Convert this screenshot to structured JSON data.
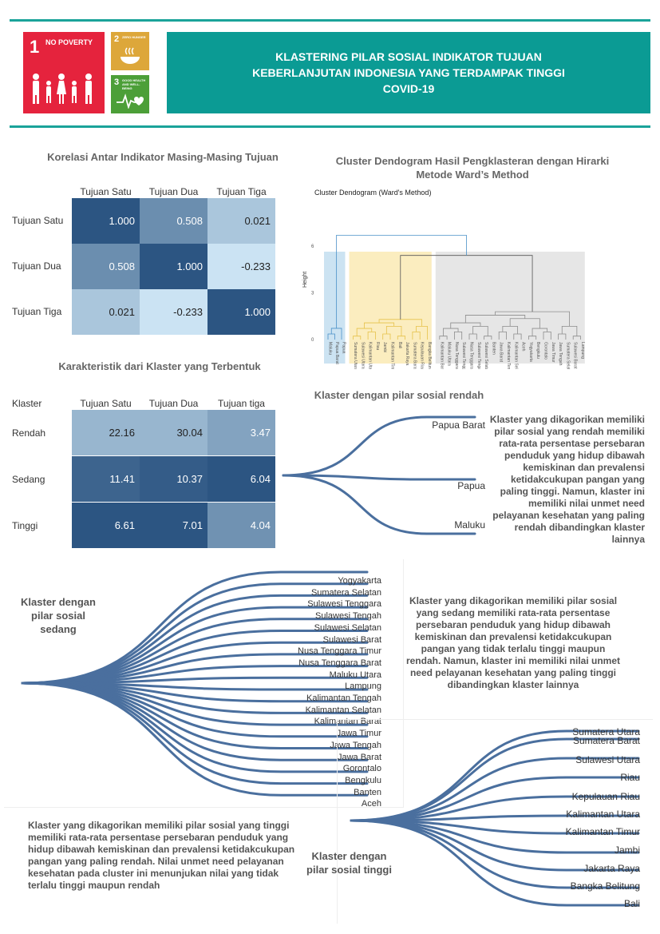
{
  "header": {
    "title_lines": [
      "KLASTERING PILAR SOSIAL INDIKATOR TUJUAN",
      "KEBERLANJUTAN INDONESIA YANG TERDAMPAK TINGGI",
      "COVID-19"
    ],
    "sdg1": {
      "num": "1",
      "text": "NO POVERTY",
      "color": "#e5233d"
    },
    "sdg2": {
      "num": "2",
      "text": "ZERO HUNGER",
      "color": "#dda73a"
    },
    "sdg3": {
      "num": "3",
      "text": "GOOD HEALTH AND WELL-BEING",
      "color": "#4c9f38"
    }
  },
  "corr_title": "Korelasi Antar Indikator Masing-Masing Tujuan",
  "dendro_title_lines": [
    "Cluster Dendogram Hasil Pengklasteran dengan Hirarki",
    "Metode Ward’s Method"
  ],
  "char_title": "Karakteristik dari Klaster yang Terbentuk",
  "low_title": "Klaster dengan pilar sosial rendah",
  "chart_data": [
    {
      "type": "heatmap",
      "title": "Korelasi Antar Indikator Masing-Masing Tujuan",
      "columns": [
        "Tujuan Satu",
        "Tujuan Dua",
        "Tujuan Tiga"
      ],
      "rows": [
        "Tujuan Satu",
        "Tujuan Dua",
        "Tujuan Tiga"
      ],
      "values": [
        [
          "1.000",
          "0.508",
          "0.021"
        ],
        [
          "0.508",
          "1.000",
          "-0.233"
        ],
        [
          "0.021",
          "-0.233",
          "1.000"
        ]
      ]
    },
    {
      "type": "heatmap",
      "title": "Karakteristik dari Klaster yang Terbentuk",
      "corner": "Klaster",
      "columns": [
        "Tujuan Satu",
        "Tujuan Dua",
        "Tujuan tiga"
      ],
      "rows": [
        "Rendah",
        "Sedang",
        "Tinggi"
      ],
      "values": [
        [
          "22.16",
          "30.04",
          "3.47"
        ],
        [
          "11.41",
          "10.37",
          "6.04"
        ],
        [
          "6.61",
          "7.01",
          "4.04"
        ]
      ]
    },
    {
      "type": "dendrogram",
      "title": "Cluster Dendogram (Ward's Method)",
      "ylabel": "Height",
      "yticks": [
        "0",
        "3",
        "6"
      ],
      "clusters": [
        {
          "name": "Rendah",
          "color": "#4a90c8",
          "bg": "#cce3f2",
          "leaves": [
            "Maluku",
            "Papua Barat",
            "Papua"
          ]
        },
        {
          "name": "Tinggi",
          "color": "#e6c24a",
          "bg": "#fbedbf",
          "leaves": [
            "Sumatera Utara",
            "Sulawesi Utara",
            "Kalimantan Utara",
            "Riau",
            "Jambi",
            "Kalimantan Timur",
            "Bali",
            "Jakarta Raya",
            "Sumatera Barat",
            "Kepulauan Riau",
            "Bangka Belitung"
          ]
        },
        {
          "name": "Sedang",
          "color": "#8c8c8c",
          "bg": "#e6e6e6",
          "leaves": [
            "Kalimantan Barat",
            "Maluku Utara",
            "Nusa Tenggara Timur",
            "Sulawesi Tenggara",
            "Nusa Tenggara Barat",
            "Sulawesi Tengah",
            "Sulawesi Selatan",
            "Banten",
            "Jawa Barat",
            "Kalimantan Tengah",
            "Kalimantan Selatan",
            "Aceh",
            "Yogyakarta",
            "Bengkulu",
            "Gorontalo",
            "Jawa Timur",
            "Jawa Tengah",
            "Sumatera Selatan",
            "Sulawesi Barat",
            "Lampung"
          ]
        }
      ]
    },
    {
      "type": "tree",
      "title": "Klaster dengan pilar sosial rendah",
      "leaves": [
        "Papua Barat",
        "Papua",
        "Maluku"
      ]
    },
    {
      "type": "tree",
      "title": "Klaster dengan pilar sosial sedang",
      "leaves": [
        "Yogyakarta",
        "Sumatera Selatan",
        "Sulawesi Tenggara",
        "Sulawesi Tengah",
        "Sulawesi Selatan",
        "Sulawesi Barat",
        "Nusa Tenggara Timur",
        "Nusa Tenggara Barat",
        "Maluku Utara",
        "Lampung",
        "Kalimantan Tengah",
        "Kalimantan Selatan",
        "Kalimantan Barat",
        "Jawa Timur",
        "Jawa Tengah",
        "Jawa Barat",
        "Gorontalo",
        "Bengkulu",
        "Banten",
        "Aceh"
      ]
    },
    {
      "type": "tree",
      "title": "Klaster dengan pilar sosial tinggi",
      "leaves": [
        "Sumatera Utara",
        "Sumatera Barat",
        "Sulawesi Utara",
        "Riau",
        "Kepulauan Riau",
        "Kalimantan Utara",
        "Kalimantan Timur",
        "Jambi",
        "Jakarta Raya",
        "Bangka Belitung",
        "Bali"
      ]
    }
  ],
  "texts": {
    "low_desc": "Klaster yang dikagorikan memiliki pilar sosial yang rendah memiliki rata-rata persentase persebaran penduduk yang hidup dibawah kemiskinan dan prevalensi ketidakcukupan pangan yang paling tinggi. Namun, klaster ini memiliki nilai unmet need pelayanan kesehatan yang paling rendah dibandingkan klaster lainnya",
    "mid_label": "Klaster dengan pilar sosial sedang",
    "mid_desc": "Klaster yang dikagorikan memiliki pilar sosial yang sedang memiliki rata-rata persentase persebaran penduduk yang hidup dibawah kemiskinan dan prevalensi ketidakcukupan pangan yang tidak terlalu tinggi maupun rendah. Namun, klaster ini memiliki nilai unmet need pelayanan kesehatan yang paling tinggi dibandingkan klaster lainnya",
    "high_desc": "Klaster yang dikagorikan memiliki pilar sosial yang tinggi memiliki rata-rata persentase persebaran penduduk yang hidup dibawah kemiskinan dan prevalensi ketidakcukupan pangan yang paling rendah. Nilai unmet need pelayanan kesehatan pada cluster ini menunjukan nilai yang tidak terlalu tinggi maupun rendah",
    "high_label": "Klaster dengan pilar sosial tinggi"
  },
  "colors": {
    "teal": "#0b9b94",
    "tree_line": "#4a6f9e"
  }
}
